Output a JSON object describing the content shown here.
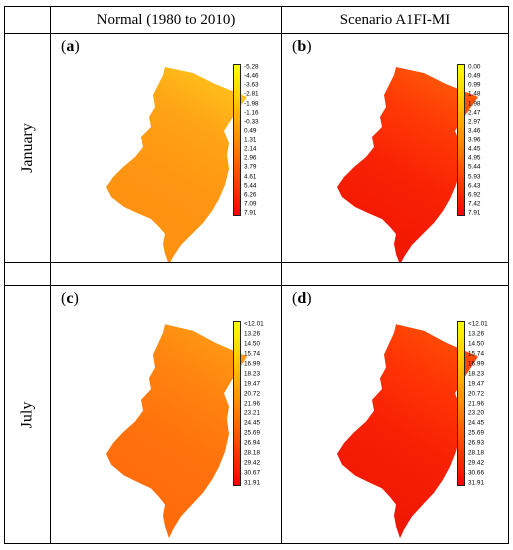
{
  "columns": [
    "Normal (1980 to 2010)",
    "Scenario A1FI-MI"
  ],
  "rows": [
    "January",
    "July"
  ],
  "panels": [
    {
      "label": "a",
      "fill_colors": [
        "#ffc21a",
        "#ffa516",
        "#ff9612",
        "#ff9010"
      ],
      "legend_ticks": [
        "-5.28",
        "-4.46",
        "-3.63",
        "-2.81",
        "-1.98",
        "-1.16",
        "-0.33",
        "0.49",
        "1.31",
        "2.14",
        "2.96",
        "3.79",
        "4.61",
        "5.44",
        "6.26",
        "7.09",
        "7.91"
      ]
    },
    {
      "label": "b",
      "fill_colors": [
        "#ff5a08",
        "#ff3a05",
        "#f92203",
        "#ef1402"
      ],
      "legend_ticks": [
        "0.00",
        "0.49",
        "0.99",
        "1.48",
        "1.98",
        "2.47",
        "2.97",
        "3.46",
        "3.96",
        "4.45",
        "4.95",
        "5.44",
        "5.93",
        "6.43",
        "6.92",
        "7.42",
        "7.91"
      ]
    },
    {
      "label": "c",
      "fill_colors": [
        "#ff9a12",
        "#ff8410",
        "#ff720c",
        "#ff6a0a"
      ],
      "legend_ticks": [
        "<12.01",
        "13.26",
        "14.50",
        "15.74",
        "16.99",
        "18.23",
        "19.47",
        "20.72",
        "21.96",
        "23.21",
        "24.45",
        "25.69",
        "26.94",
        "28.18",
        "29.42",
        "30.67",
        "31.91"
      ]
    },
    {
      "label": "d",
      "fill_colors": [
        "#ff4e06",
        "#ff3404",
        "#f72003",
        "#ee1502"
      ],
      "legend_ticks": [
        "<12.01",
        "13.26",
        "14.50",
        "15.74",
        "16.99",
        "18.23",
        "19.47",
        "20.72",
        "21.96",
        "23.20",
        "24.45",
        "25.69",
        "26.93",
        "28.18",
        "29.42",
        "30.66",
        "31.91"
      ]
    }
  ],
  "colors": {
    "legend_top": "#ffff00",
    "legend_mid": "#ff8c00",
    "legend_bottom": "#ff0000",
    "border": "#000000"
  }
}
